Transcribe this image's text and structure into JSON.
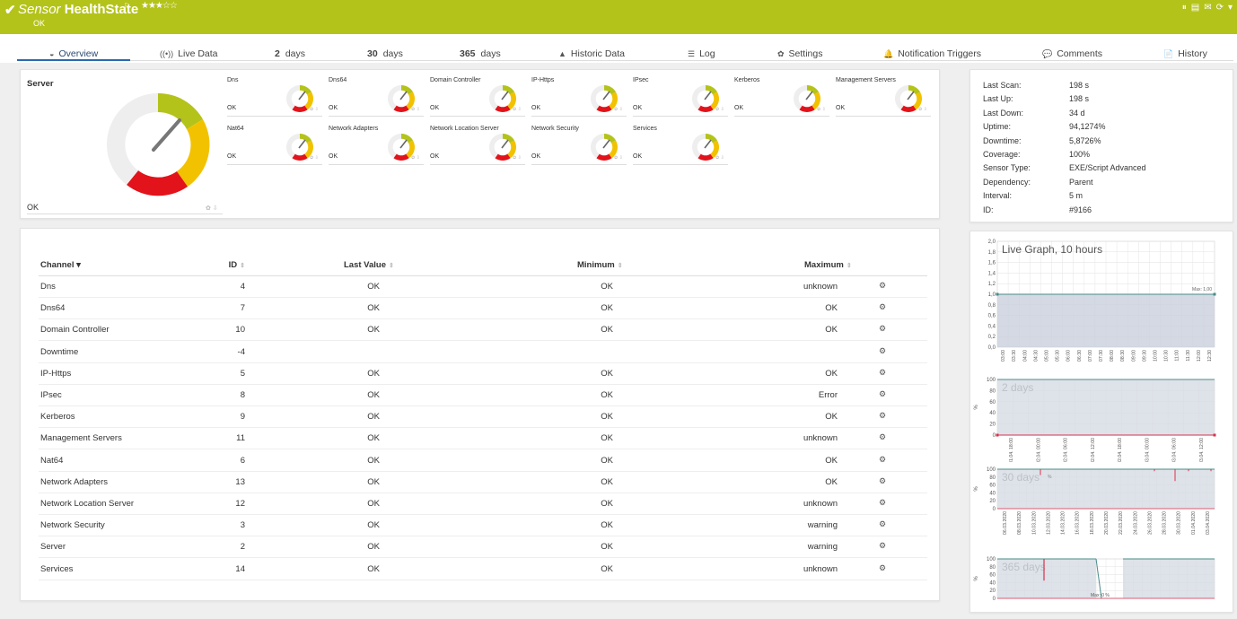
{
  "header": {
    "check_icon": "✔",
    "title_prefix": "Sensor",
    "title_name": "HealthState",
    "flag_icon": "flag-icon",
    "stars": "★★★☆☆",
    "status": "OK",
    "color": "#b4c31a",
    "tools": [
      "⏸",
      "▤",
      "✉",
      "⟳",
      "▾"
    ]
  },
  "tabs": [
    {
      "icon": "◒",
      "label": "Overview"
    },
    {
      "icon": "((•))",
      "label": "Live Data"
    },
    {
      "num": "2",
      "label": "days"
    },
    {
      "num": "30",
      "label": "days"
    },
    {
      "num": "365",
      "label": "days"
    },
    {
      "icon": "▲",
      "label": "Historic Data"
    },
    {
      "icon": "☰",
      "label": "Log"
    },
    {
      "icon": "✿",
      "label": "Settings"
    },
    {
      "icon": "🔔",
      "label": "Notification Triggers"
    },
    {
      "icon": "💬",
      "label": "Comments"
    },
    {
      "icon": "📄",
      "label": "History"
    }
  ],
  "gauge": {
    "title": "Server",
    "status": "OK"
  },
  "mini_gauges": [
    {
      "name": "Dns",
      "status": "OK"
    },
    {
      "name": "Dns64",
      "status": "OK"
    },
    {
      "name": "Domain Controller",
      "status": "OK"
    },
    {
      "name": "IP-Https",
      "status": "OK"
    },
    {
      "name": "IPsec",
      "status": "OK"
    },
    {
      "name": "Kerberos",
      "status": "OK"
    },
    {
      "name": "Management Servers",
      "status": "OK"
    },
    {
      "name": "Nat64",
      "status": "OK"
    },
    {
      "name": "Network Adapters",
      "status": "OK"
    },
    {
      "name": "Network Location Server",
      "status": "OK"
    },
    {
      "name": "Network Security",
      "status": "OK"
    },
    {
      "name": "Services",
      "status": "OK"
    }
  ],
  "info": [
    {
      "label": "Last Scan:",
      "value": "198 s"
    },
    {
      "label": "Last Up:",
      "value": "198 s"
    },
    {
      "label": "Last Down:",
      "value": "34 d"
    },
    {
      "label": "Uptime:",
      "value": "94,1274%"
    },
    {
      "label": "Downtime:",
      "value": "5,8726%"
    },
    {
      "label": "Coverage:",
      "value": "100%"
    },
    {
      "label": "Sensor Type:",
      "value": "EXE/Script Advanced"
    },
    {
      "label": "Dependency:",
      "value": "Parent"
    },
    {
      "label": "Interval:",
      "value": "5 m"
    },
    {
      "label": "ID:",
      "value": "#9166"
    }
  ],
  "table": {
    "headers": [
      "Channel",
      "ID",
      "Last Value",
      "Minimum",
      "Maximum"
    ],
    "sort_icon": "▾",
    "rows": [
      {
        "channel": "Dns",
        "id": "4",
        "last": "OK",
        "min": "OK",
        "max": "unknown"
      },
      {
        "channel": "Dns64",
        "id": "7",
        "last": "OK",
        "min": "OK",
        "max": "OK"
      },
      {
        "channel": "Domain Controller",
        "id": "10",
        "last": "OK",
        "min": "OK",
        "max": "OK"
      },
      {
        "channel": "Downtime",
        "id": "-4",
        "last": "",
        "min": "",
        "max": ""
      },
      {
        "channel": "IP-Https",
        "id": "5",
        "last": "OK",
        "min": "OK",
        "max": "OK"
      },
      {
        "channel": "IPsec",
        "id": "8",
        "last": "OK",
        "min": "OK",
        "max": "Error"
      },
      {
        "channel": "Kerberos",
        "id": "9",
        "last": "OK",
        "min": "OK",
        "max": "OK"
      },
      {
        "channel": "Management Servers",
        "id": "11",
        "last": "OK",
        "min": "OK",
        "max": "unknown"
      },
      {
        "channel": "Nat64",
        "id": "6",
        "last": "OK",
        "min": "OK",
        "max": "OK"
      },
      {
        "channel": "Network Adapters",
        "id": "13",
        "last": "OK",
        "min": "OK",
        "max": "OK"
      },
      {
        "channel": "Network Location Server",
        "id": "12",
        "last": "OK",
        "min": "OK",
        "max": "unknown"
      },
      {
        "channel": "Network Security",
        "id": "3",
        "last": "OK",
        "min": "OK",
        "max": "warning"
      },
      {
        "channel": "Server",
        "id": "2",
        "last": "OK",
        "min": "OK",
        "max": "warning"
      },
      {
        "channel": "Services",
        "id": "14",
        "last": "OK",
        "min": "OK",
        "max": "unknown"
      }
    ]
  },
  "graphs": {
    "live": {
      "title": "Live Graph, 10 hours",
      "yticks": [
        "2,0",
        "1,8",
        "1,6",
        "1,4",
        "1,2",
        "1,0",
        "0,8",
        "0,6",
        "0,4",
        "0,2",
        "0,0"
      ],
      "xticks": [
        "03:00",
        "03:30",
        "04:00",
        "04:30",
        "05:00",
        "05:30",
        "06:00",
        "06:30",
        "07:00",
        "07:30",
        "08:00",
        "08:30",
        "09:00",
        "09:30",
        "10:00",
        "10:30",
        "11:00",
        "11:30",
        "12:00",
        "12:30"
      ],
      "max_label": "Max: 1,00"
    },
    "d2": {
      "title": "2 days",
      "yticks": [
        "100",
        "80",
        "60",
        "40",
        "20",
        "0"
      ],
      "ylabel": "%",
      "xticks": [
        "01.04. 18:00",
        "02.04. 00:00",
        "02.04. 06:00",
        "02.04. 12:00",
        "02.04. 18:00",
        "03.04. 00:00",
        "03.04. 06:00",
        "03.04. 12:00"
      ]
    },
    "d30": {
      "title": "30 days",
      "yticks": [
        "100",
        "80",
        "60",
        "40",
        "20",
        "0"
      ],
      "ylabel": "%",
      "xticks": [
        "06.03.2020",
        "08.03.2020",
        "10.03.2020",
        "12.03.2020",
        "14.03.2020",
        "16.03.2020",
        "18.03.2020",
        "20.03.2020",
        "22.03.2020",
        "24.03.2020",
        "26.03.2020",
        "28.03.2020",
        "30.03.2020",
        "01.04.2020",
        "03.04.2020"
      ],
      "annotation": "%"
    },
    "d365": {
      "title": "365 days",
      "yticks": [
        "100",
        "80",
        "60",
        "40",
        "20",
        "0"
      ],
      "ylabel": "%",
      "max_label": "Max: 0 %"
    }
  }
}
